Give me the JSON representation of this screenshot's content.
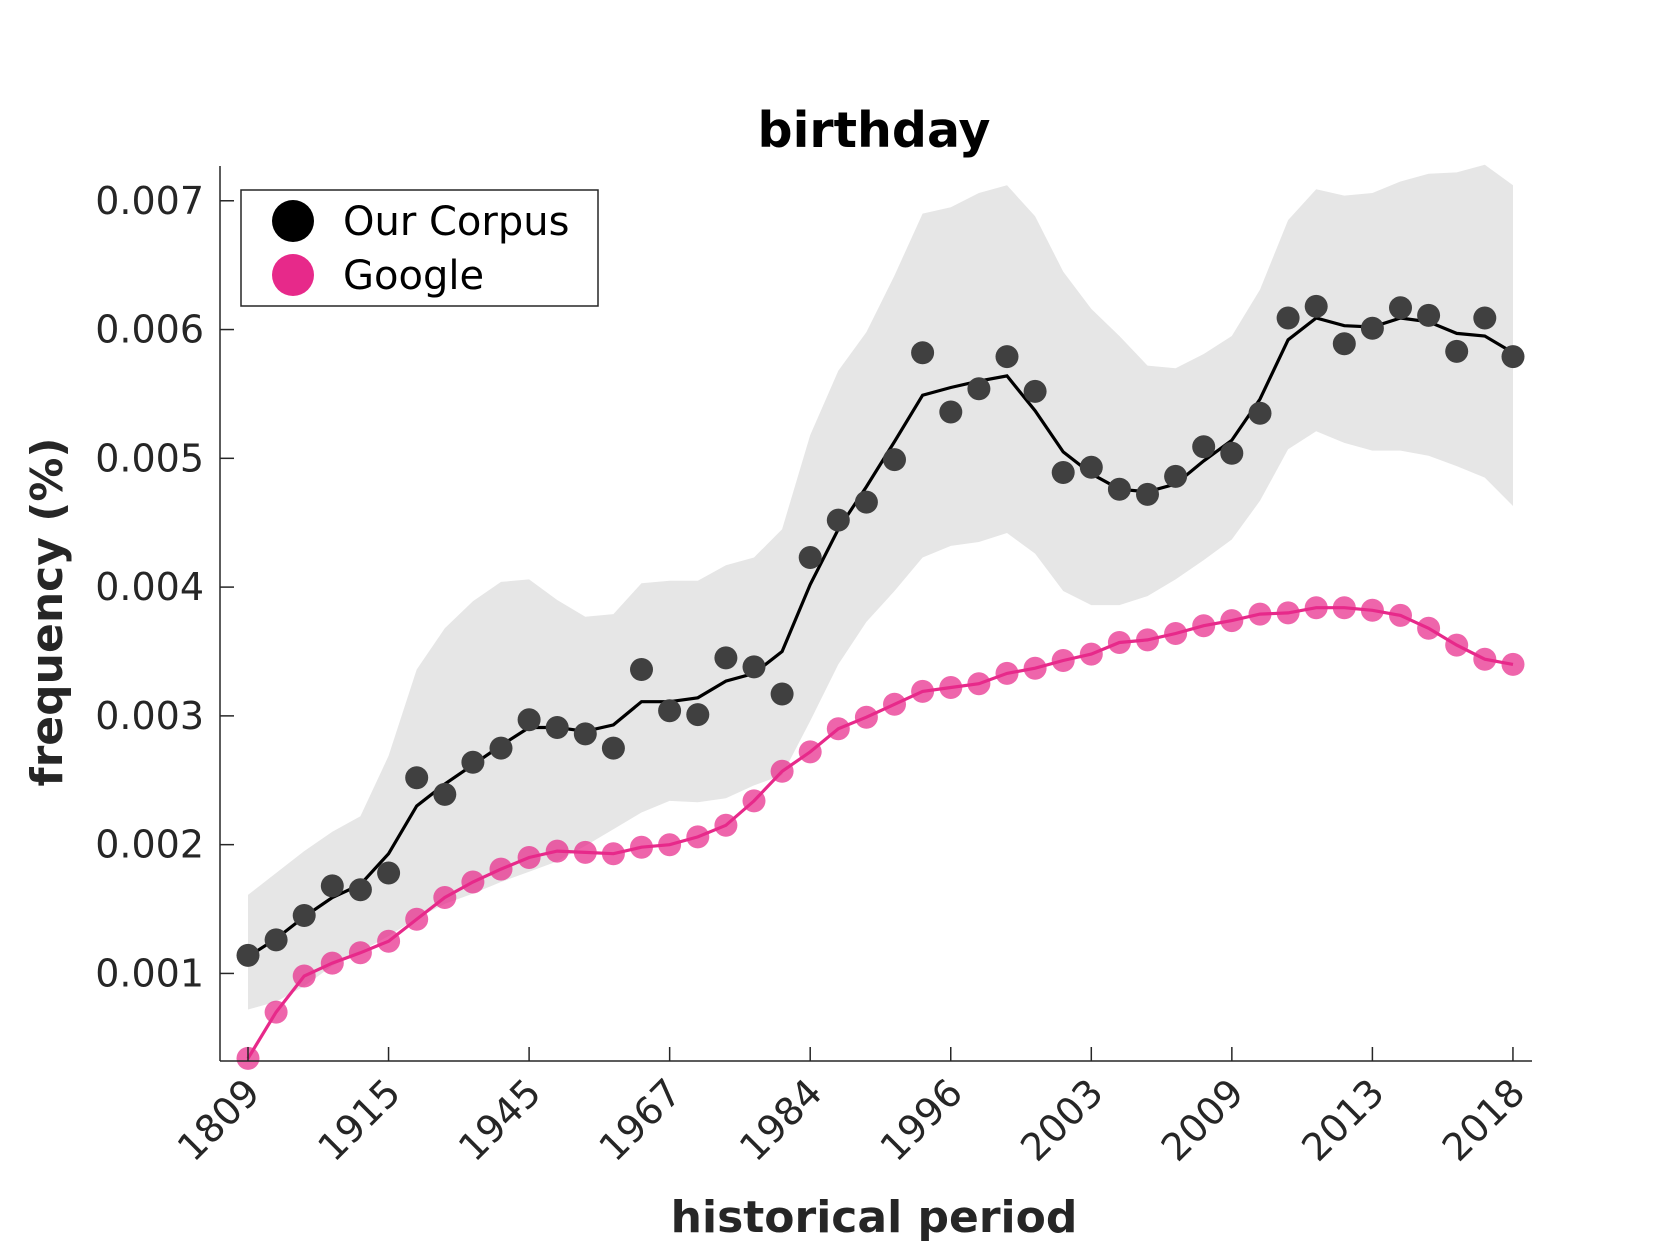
{
  "chart_data": {
    "type": "scatter",
    "title": "birthday",
    "xlabel": "historical period",
    "ylabel": "frequency (%)",
    "x_tick_labels": [
      "1809",
      "1915",
      "1945",
      "1967",
      "1984",
      "1996",
      "2003",
      "2009",
      "2013",
      "2018"
    ],
    "x_tick_index": [
      0,
      5,
      10,
      15,
      20,
      25,
      30,
      35,
      40,
      45
    ],
    "n_periods": 46,
    "ylim": [
      0.00032,
      0.00727
    ],
    "yticks": [
      0.001,
      0.002,
      0.003,
      0.004,
      0.005,
      0.006,
      0.007
    ],
    "ytick_labels": [
      "0.001",
      "0.002",
      "0.003",
      "0.004",
      "0.005",
      "0.006",
      "0.007"
    ],
    "grid": false,
    "legend_position": "top-left",
    "series": [
      {
        "name": "Our Corpus",
        "color": "#000000",
        "marker_color": "#404040",
        "points": [
          0.00114,
          0.00126,
          0.00145,
          0.00168,
          0.00165,
          0.00178,
          0.00252,
          0.00239,
          0.00264,
          0.00275,
          0.00297,
          0.00291,
          0.00286,
          0.00275,
          0.00336,
          0.00304,
          0.00301,
          0.00345,
          0.00338,
          0.00317,
          0.00423,
          0.00452,
          0.00466,
          0.00499,
          0.00582,
          0.00536,
          0.00554,
          0.00579,
          0.00552,
          0.00489,
          0.00493,
          0.00476,
          0.00472,
          0.00486,
          0.00509,
          0.00504,
          0.00535,
          0.00609,
          0.00618,
          0.00589,
          0.00601,
          0.00617,
          0.00611,
          0.00583,
          0.00609,
          0.00579
        ],
        "smoothed": [
          0.00113,
          0.00127,
          0.00144,
          0.00159,
          0.00169,
          0.00193,
          0.0023,
          0.00247,
          0.00262,
          0.00277,
          0.00291,
          0.00291,
          0.00288,
          0.00293,
          0.00311,
          0.00311,
          0.00314,
          0.00327,
          0.00333,
          0.0035,
          0.00402,
          0.00445,
          0.00478,
          0.00513,
          0.00549,
          0.00555,
          0.0056,
          0.00564,
          0.00537,
          0.00505,
          0.00488,
          0.00476,
          0.00474,
          0.0048,
          0.00498,
          0.00514,
          0.00546,
          0.00592,
          0.00609,
          0.00603,
          0.00602,
          0.00609,
          0.00606,
          0.00597,
          0.00595,
          0.00582
        ],
        "band_upper": [
          0.00161,
          0.00178,
          0.00195,
          0.0021,
          0.00222,
          0.00269,
          0.00336,
          0.00368,
          0.00389,
          0.00404,
          0.00406,
          0.0039,
          0.00377,
          0.00379,
          0.00403,
          0.00405,
          0.00405,
          0.00417,
          0.00423,
          0.00445,
          0.00518,
          0.00568,
          0.00598,
          0.00642,
          0.0069,
          0.00695,
          0.00706,
          0.00712,
          0.00688,
          0.00645,
          0.00616,
          0.00595,
          0.00572,
          0.0057,
          0.00581,
          0.00595,
          0.00631,
          0.00685,
          0.00709,
          0.00704,
          0.00706,
          0.00715,
          0.00721,
          0.00722,
          0.00728,
          0.00712
        ],
        "band_lower": [
          0.00072,
          0.00078,
          0.0009,
          0.00106,
          0.00117,
          0.00129,
          0.00143,
          0.00154,
          0.00162,
          0.00171,
          0.00179,
          0.00187,
          0.00199,
          0.00212,
          0.00225,
          0.00234,
          0.00233,
          0.00236,
          0.00246,
          0.00254,
          0.00296,
          0.0034,
          0.00373,
          0.00397,
          0.00423,
          0.00432,
          0.00435,
          0.00442,
          0.00426,
          0.00397,
          0.00386,
          0.00386,
          0.00393,
          0.00406,
          0.00421,
          0.00437,
          0.00467,
          0.00507,
          0.00521,
          0.00512,
          0.00506,
          0.00506,
          0.00502,
          0.00494,
          0.00485,
          0.00463
        ]
      },
      {
        "name": "Google",
        "color": "#e7298a",
        "marker_color": "#e7298a",
        "points": [
          0.00034,
          0.0007,
          0.00098,
          0.00108,
          0.00116,
          0.00125,
          0.00142,
          0.00159,
          0.00171,
          0.00181,
          0.0019,
          0.00195,
          0.00194,
          0.00193,
          0.00198,
          0.002,
          0.00206,
          0.00215,
          0.00234,
          0.00257,
          0.00272,
          0.0029,
          0.00299,
          0.00309,
          0.00319,
          0.00322,
          0.00325,
          0.00333,
          0.00337,
          0.00343,
          0.00348,
          0.00357,
          0.00359,
          0.00364,
          0.0037,
          0.00374,
          0.00379,
          0.0038,
          0.00384,
          0.00384,
          0.00382,
          0.00378,
          0.00368,
          0.00355,
          0.00344,
          0.0034
        ]
      }
    ]
  },
  "legend": {
    "items": [
      "Our Corpus",
      "Google"
    ]
  }
}
